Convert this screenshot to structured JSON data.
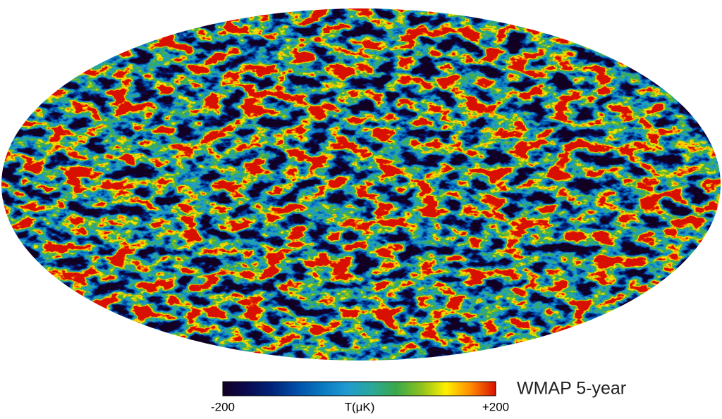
{
  "map": {
    "title": "WMAP 5-year",
    "projection": "mollweide",
    "colorbar": {
      "label": "T(μK)",
      "lim": [
        -200,
        200
      ],
      "ticks": [
        -200,
        {
          "value": 200,
          "label": "+200"
        }
      ],
      "colors": [
        "#120024",
        "#0a0a50",
        "#00247a",
        "#004fa8",
        "#0a78c0",
        "#1f9bd0",
        "#2aa89a",
        "#3aa84a",
        "#8cc21e",
        "#fff000",
        "#ff8a00",
        "#d81000"
      ]
    }
  }
}
